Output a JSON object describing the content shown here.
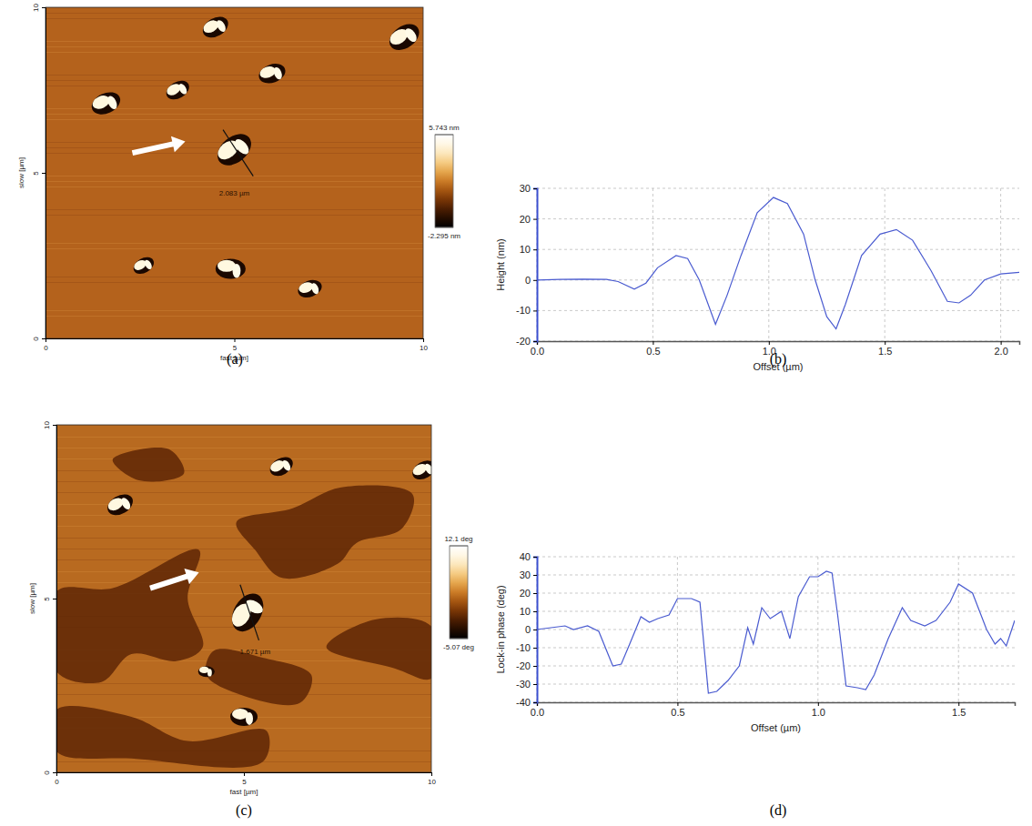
{
  "chart_data": [
    {
      "type": "image",
      "caption": "(a)",
      "x_label": "fast [µm]",
      "y_label": "slow [µm]",
      "xlim": [
        0,
        10
      ],
      "xticks": [
        0,
        5,
        10
      ],
      "ylim": [
        0,
        10
      ],
      "yticks": [
        0,
        5,
        10
      ],
      "annotation": "2.083 µm",
      "colorbar": {
        "range": [
          -2.295,
          5.743
        ],
        "ticks": [
          {
            "value": 5.743,
            "label": "5.743 nm"
          },
          {
            "value": -2.295,
            "label": "-2.295 nm"
          }
        ]
      }
    },
    {
      "type": "line",
      "caption": "(b)",
      "x_label": "Offset (µm)",
      "y_label": "Height (nm)",
      "color": "#4a5bd0",
      "grid": true,
      "xlim": [
        0,
        2.08
      ],
      "xticks": [
        {
          "value": 0,
          "label": "0.0"
        },
        {
          "value": 0.5,
          "label": "0.5"
        },
        {
          "value": 1,
          "label": "1.0"
        },
        {
          "value": 1.5,
          "label": "1.5"
        },
        {
          "value": 2,
          "label": "2.0"
        }
      ],
      "ylim": [
        -20,
        30
      ],
      "yticks": [
        -20,
        -10,
        0,
        10,
        20,
        30
      ],
      "x": [
        0,
        0.1,
        0.2,
        0.3,
        0.35,
        0.42,
        0.47,
        0.52,
        0.6,
        0.65,
        0.7,
        0.77,
        0.82,
        0.88,
        0.95,
        1.02,
        1.08,
        1.15,
        1.2,
        1.25,
        1.29,
        1.33,
        1.4,
        1.48,
        1.55,
        1.62,
        1.7,
        1.77,
        1.82,
        1.87,
        1.93,
        2.0,
        2.08
      ],
      "values": [
        0,
        0.2,
        0.3,
        0.2,
        -0.5,
        -3,
        -1,
        4,
        8,
        7,
        0,
        -14.5,
        -5,
        8,
        22,
        27,
        25,
        15,
        0,
        -12,
        -16,
        -8,
        8,
        15,
        16.5,
        13,
        3,
        -7,
        -7.5,
        -5,
        0,
        2,
        2.5
      ]
    },
    {
      "type": "image",
      "caption": "(c)",
      "x_label": "fast [µm]",
      "y_label": "slow [µm]",
      "xlim": [
        0,
        10
      ],
      "xticks": [
        0,
        5,
        10
      ],
      "ylim": [
        0,
        10
      ],
      "yticks": [
        0,
        5,
        10
      ],
      "annotation": "1.671 µm",
      "colorbar": {
        "range": [
          -5.07,
          12.1
        ],
        "ticks": [
          {
            "value": 12.1,
            "label": "12.1 deg"
          },
          {
            "value": -5.07,
            "label": "-5.07 deg"
          }
        ]
      }
    },
    {
      "type": "line",
      "caption": "(d)",
      "x_label": "Offset (µm)",
      "y_label": "Lock-in phase (deg)",
      "color": "#4a5bd0",
      "grid": true,
      "xlim": [
        0,
        1.7
      ],
      "xticks": [
        {
          "value": 0,
          "label": "0.0"
        },
        {
          "value": 0.5,
          "label": "0.5"
        },
        {
          "value": 1,
          "label": "1.0"
        },
        {
          "value": 1.5,
          "label": "1.5"
        }
      ],
      "ylim": [
        -40,
        40
      ],
      "yticks": [
        -40,
        -30,
        -20,
        -10,
        0,
        10,
        20,
        30,
        40
      ],
      "x": [
        0,
        0.05,
        0.1,
        0.13,
        0.18,
        0.22,
        0.27,
        0.3,
        0.33,
        0.37,
        0.4,
        0.43,
        0.47,
        0.5,
        0.55,
        0.58,
        0.61,
        0.64,
        0.68,
        0.72,
        0.75,
        0.77,
        0.8,
        0.83,
        0.87,
        0.9,
        0.93,
        0.97,
        1.0,
        1.03,
        1.05,
        1.07,
        1.1,
        1.14,
        1.17,
        1.2,
        1.25,
        1.3,
        1.33,
        1.38,
        1.42,
        1.47,
        1.5,
        1.55,
        1.6,
        1.63,
        1.65,
        1.67,
        1.7
      ],
      "values": [
        0,
        1,
        2,
        0,
        2,
        -1,
        -20,
        -19,
        -8,
        7,
        4,
        6,
        8,
        17,
        17,
        15,
        -35,
        -34,
        -28,
        -20,
        1,
        -8,
        12,
        6,
        10,
        -5,
        18,
        29,
        29,
        32,
        31,
        8,
        -31,
        -32,
        -33,
        -25,
        -5,
        12,
        5,
        2,
        5,
        15,
        25,
        20,
        0,
        -8,
        -5,
        -9,
        5
      ]
    }
  ]
}
